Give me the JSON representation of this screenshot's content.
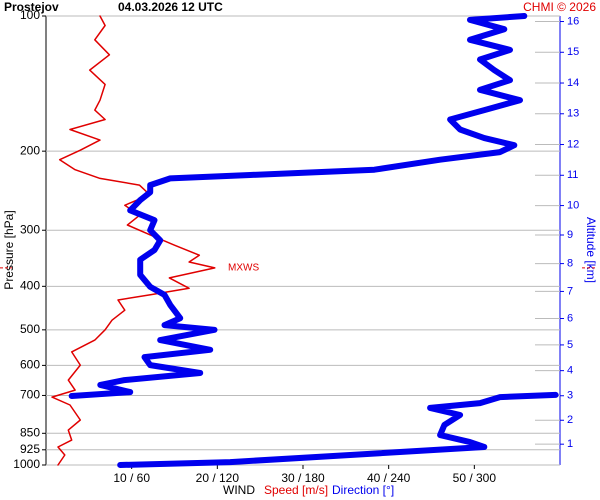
{
  "chart_data": {
    "type": "line",
    "title": "Prostejov",
    "subtitle": "04.03.2026 12 UTC",
    "credit": "CHMI © 2026",
    "x_label": "WIND",
    "y_label": "Pressure [hPa]",
    "y2_label": "Altitude [km]",
    "ylim": [
      1000,
      100
    ],
    "log_y": true,
    "yticks": [
      100,
      200,
      300,
      400,
      500,
      600,
      700,
      850,
      925,
      1000
    ],
    "y2ticks": [
      1,
      2,
      3,
      4,
      5,
      6,
      7,
      8,
      9,
      10,
      11,
      12,
      13,
      14,
      15,
      16
    ],
    "xlim": [
      0,
      60
    ],
    "x2lim": [
      0,
      360
    ],
    "xticks": [
      {
        "value": 10,
        "label": "10 / 60"
      },
      {
        "value": 20,
        "label": "20 / 120"
      },
      {
        "value": 30,
        "label": "30 / 180"
      },
      {
        "value": 40,
        "label": "40 / 240"
      },
      {
        "value": 50,
        "label": "50 / 300"
      }
    ],
    "grid": true,
    "annotation": {
      "text": "MXWS",
      "pressure": 364
    },
    "series": [
      {
        "name": "Speed [m/s]",
        "color": "#e00000",
        "pressure": [
          1000,
          950,
          912,
          880,
          836,
          794,
          735,
          706,
          681,
          647,
          599,
          560,
          527,
          500,
          476,
          452,
          429,
          418,
          404,
          383,
          364,
          353,
          341,
          324,
          307,
          292,
          278,
          264,
          250,
          238,
          230,
          220,
          209,
          199,
          189,
          179,
          170,
          162,
          154,
          142,
          132,
          122,
          113,
          105,
          100
        ],
        "values": [
          1.4,
          2.2,
          1.4,
          3.0,
          2.6,
          4.0,
          2.8,
          0.7,
          3.4,
          2.6,
          4.0,
          3.0,
          5.7,
          6.9,
          7.7,
          9.2,
          8.4,
          12.1,
          16.7,
          14.4,
          19.7,
          16.7,
          17.9,
          15.0,
          12.1,
          9.5,
          10.9,
          9.2,
          12.1,
          10.9,
          6.3,
          3.4,
          1.6,
          4.0,
          6.3,
          2.8,
          6.9,
          5.7,
          6.3,
          6.9,
          5.1,
          7.4,
          5.7,
          6.9,
          6.3
        ]
      },
      {
        "name": "Direction [°]",
        "color": "#0000ee",
        "axis": "x2",
        "pressure": [
          1000,
          985,
          950,
          912,
          889,
          858,
          814,
          774,
          746,
          728,
          706,
          698,
          null,
          702,
          688,
          663,
          647,
          624,
          599,
          575,
          554,
          527,
          500,
          488,
          471,
          440,
          418,
          401,
          377,
          349,
          332,
          316,
          300,
          285,
          271,
          257,
          247,
          238,
          230,
          226,
          220,
          209,
          201,
          194,
          187,
          179,
          170,
          162,
          154,
          146,
          139,
          132,
          125,
          119,
          113,
          107,
          102,
          100
        ],
        "values": [
          52,
          129,
          213,
          307,
          297,
          276,
          279,
          290,
          269,
          304,
          318,
          357,
          null,
          18,
          59,
          38,
          55,
          108,
          73,
          69,
          115,
          80,
          118,
          83,
          94,
          87,
          83,
          73,
          66,
          66,
          76,
          80,
          73,
          76,
          59,
          66,
          73,
          73,
          87,
          143,
          230,
          276,
          318,
          328,
          307,
          290,
          283,
          307,
          332,
          304,
          325,
          314,
          304,
          325,
          297,
          321,
          297,
          335
        ]
      }
    ]
  }
}
